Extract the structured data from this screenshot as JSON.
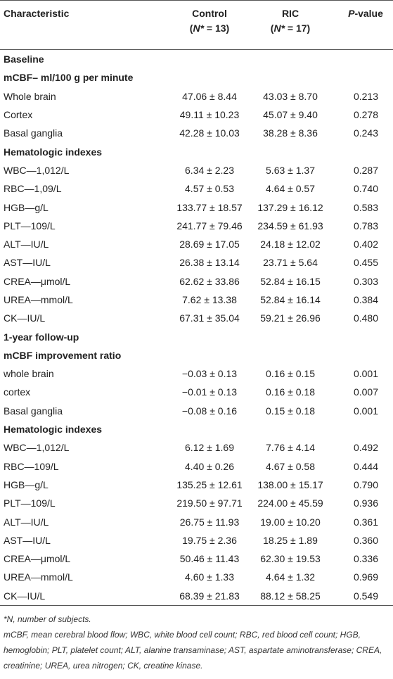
{
  "header": {
    "characteristic": "Characteristic",
    "control": {
      "name": "Control",
      "open": "(",
      "symbol": "N*",
      "rest": " = 13)"
    },
    "ric": {
      "name": "RIC",
      "open": "(",
      "symbol": "N*",
      "rest": " = 17)"
    },
    "p_value": {
      "symbol": "P",
      "rest": "-value"
    }
  },
  "table": {
    "rows": [
      {
        "heading": "Baseline"
      },
      {
        "heading": "mCBF– ml/100 g per minute"
      },
      {
        "label": "Whole brain",
        "control": "47.06 ± 8.44",
        "ric": "43.03 ± 8.70",
        "p": "0.213"
      },
      {
        "label": "Cortex",
        "control": "49.11 ± 10.23",
        "ric": "45.07 ± 9.40",
        "p": "0.278"
      },
      {
        "label": "Basal ganglia",
        "control": "42.28 ± 10.03",
        "ric": "38.28 ± 8.36",
        "p": "0.243"
      },
      {
        "heading": "Hematologic indexes"
      },
      {
        "label": "WBC—1,012/L",
        "control": "6.34 ± 2.23",
        "ric": "5.63 ± 1.37",
        "p": "0.287"
      },
      {
        "label": "RBC—1,09/L",
        "control": "4.57 ± 0.53",
        "ric": "4.64 ± 0.57",
        "p": "0.740"
      },
      {
        "label": "HGB—g/L",
        "control": "133.77 ± 18.57",
        "ric": "137.29 ± 16.12",
        "p": "0.583"
      },
      {
        "label": "PLT—109/L",
        "control": "241.77 ± 79.46",
        "ric": "234.59 ± 61.93",
        "p": "0.783"
      },
      {
        "label": "ALT—IU/L",
        "control": "28.69 ± 17.05",
        "ric": "24.18 ± 12.02",
        "p": "0.402"
      },
      {
        "label": "AST—IU/L",
        "control": "26.38 ± 13.14",
        "ric": "23.71 ± 5.64",
        "p": "0.455"
      },
      {
        "label": "CREA—μmol/L",
        "control": "62.62 ± 33.86",
        "ric": "52.84 ± 16.15",
        "p": "0.303"
      },
      {
        "label": "UREA—mmol/L",
        "control": "7.62 ± 13.38",
        "ric": "52.84 ± 16.14",
        "p": "0.384"
      },
      {
        "label": "CK—IU/L",
        "control": "67.31 ± 35.04",
        "ric": "59.21 ± 26.96",
        "p": "0.480"
      },
      {
        "heading": "1-year follow-up"
      },
      {
        "heading": "mCBF improvement ratio"
      },
      {
        "label": "whole brain",
        "control": "−0.03 ± 0.13",
        "ric": "0.16 ± 0.15",
        "p": "0.001"
      },
      {
        "label": "cortex",
        "control": "−0.01 ± 0.13",
        "ric": "0.16 ± 0.18",
        "p": "0.007"
      },
      {
        "label": "Basal ganglia",
        "control": "−0.08 ± 0.16",
        "ric": "0.15 ± 0.18",
        "p": "0.001"
      },
      {
        "heading": "Hematologic indexes"
      },
      {
        "label": "WBC—1,012/L",
        "control": "6.12 ± 1.69",
        "ric": "7.76 ± 4.14",
        "p": "0.492"
      },
      {
        "label": "RBC—109/L",
        "control": "4.40 ± 0.26",
        "ric": "4.67 ± 0.58",
        "p": "0.444"
      },
      {
        "label": "HGB—g/L",
        "control": "135.25 ± 12.61",
        "ric": "138.00 ± 15.17",
        "p": "0.790"
      },
      {
        "label": "PLT—109/L",
        "control": "219.50 ± 97.71",
        "ric": "224.00 ± 45.59",
        "p": "0.936"
      },
      {
        "label": "ALT—IU/L",
        "control": "26.75 ± 11.93",
        "ric": "19.00 ± 10.20",
        "p": "0.361"
      },
      {
        "label": "AST—IU/L",
        "control": "19.75 ± 2.36",
        "ric": "18.25 ± 1.89",
        "p": "0.360"
      },
      {
        "label": "CREA—μmol/L",
        "control": "50.46 ± 11.43",
        "ric": "62.30 ± 19.53",
        "p": "0.336"
      },
      {
        "label": "UREA—mmol/L",
        "control": "4.60 ± 1.33",
        "ric": "4.64 ± 1.32",
        "p": "0.969"
      },
      {
        "label": "CK—IU/L",
        "control": "68.39 ± 21.83",
        "ric": "88.12 ± 58.25",
        "p": "0.549"
      }
    ]
  },
  "footnotes": {
    "star": "*",
    "symbol": "N",
    "rest": ", number of subjects.",
    "abbreviations": "mCBF, mean cerebral blood flow; WBC, white blood cell count; RBC, red blood cell count; HGB, hemoglobin; PLT, platelet count; ALT, alanine transaminase; AST, aspartate aminotransferase; CREA, creatinine; UREA, urea nitrogen; CK, creatine kinase."
  }
}
